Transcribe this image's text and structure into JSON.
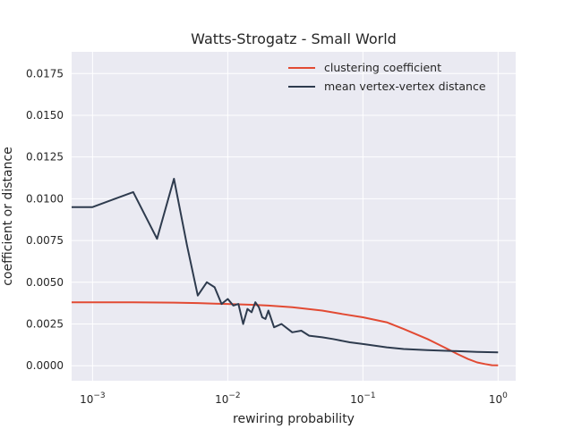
{
  "chart_data": {
    "type": "line",
    "title": "Watts-Strogatz - Small World",
    "xlabel": "rewiring probability",
    "ylabel": "coefficient or distance",
    "xscale": "log",
    "xlim": [
      0.0007,
      1.35
    ],
    "ylim": [
      -0.0009,
      0.0188
    ],
    "grid": true,
    "legend": "top-right",
    "background": "#eaeaf2",
    "x_ticks": [
      {
        "value": 0.001,
        "base": "10",
        "exp": "−3"
      },
      {
        "value": 0.01,
        "base": "10",
        "exp": "−2"
      },
      {
        "value": 0.1,
        "base": "10",
        "exp": "−1"
      },
      {
        "value": 1,
        "base": "10",
        "exp": "0"
      }
    ],
    "y_ticks": [
      "0.0000",
      "0.0025",
      "0.0050",
      "0.0075",
      "0.0100",
      "0.0125",
      "0.0150",
      "0.0175"
    ],
    "series": [
      {
        "name": "clustering coefficient",
        "color": "#e24a33",
        "x": [
          0.0007,
          0.001,
          0.002,
          0.004,
          0.006,
          0.008,
          0.01,
          0.015,
          0.02,
          0.03,
          0.05,
          0.07,
          0.1,
          0.15,
          0.2,
          0.3,
          0.4,
          0.5,
          0.6,
          0.7,
          0.8,
          0.9,
          1.0
        ],
        "y": [
          0.0038,
          0.0038,
          0.0038,
          0.00378,
          0.00375,
          0.00372,
          0.0037,
          0.00365,
          0.0036,
          0.0035,
          0.0033,
          0.0031,
          0.0029,
          0.0026,
          0.0022,
          0.0016,
          0.0011,
          0.0007,
          0.0004,
          0.0002,
          0.0001,
          3e-05,
          2e-05
        ]
      },
      {
        "name": "mean vertex-vertex distance",
        "color": "#2e3b4e",
        "x": [
          0.0007,
          0.001,
          0.002,
          0.003,
          0.004,
          0.005,
          0.006,
          0.007,
          0.008,
          0.009,
          0.01,
          0.011,
          0.012,
          0.013,
          0.014,
          0.015,
          0.016,
          0.017,
          0.018,
          0.019,
          0.02,
          0.022,
          0.025,
          0.03,
          0.035,
          0.04,
          0.05,
          0.06,
          0.08,
          0.1,
          0.15,
          0.2,
          0.3,
          0.5,
          0.7,
          1.0
        ],
        "y": [
          0.0095,
          0.0095,
          0.0104,
          0.0076,
          0.0112,
          0.0072,
          0.0042,
          0.005,
          0.0047,
          0.0037,
          0.004,
          0.0036,
          0.0037,
          0.0025,
          0.0034,
          0.0032,
          0.0038,
          0.0035,
          0.0029,
          0.0028,
          0.0033,
          0.0023,
          0.0025,
          0.002,
          0.0021,
          0.0018,
          0.0017,
          0.0016,
          0.0014,
          0.0013,
          0.0011,
          0.001,
          0.00093,
          0.00087,
          0.00083,
          0.0008
        ]
      }
    ]
  }
}
